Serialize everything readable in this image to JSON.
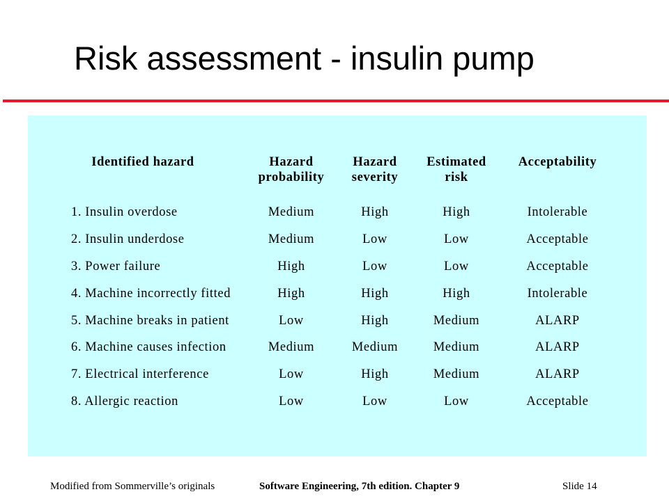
{
  "slide": {
    "title": "Risk assessment - insulin pump",
    "accent_color": "#e8182e",
    "panel_color": "#ccffff"
  },
  "table": {
    "headers": [
      "Identified hazard",
      "Hazard\nprobability",
      "Hazard\nseverity",
      "Estimated\nrisk",
      "Acceptability"
    ],
    "rows": [
      [
        "1. Insulin overdose",
        "Medium",
        "High",
        "High",
        "Intolerable"
      ],
      [
        "2. Insulin underdose",
        "Medium",
        "Low",
        "Low",
        "Acceptable"
      ],
      [
        "3. Power failure",
        "High",
        "Low",
        "Low",
        "Acceptable"
      ],
      [
        "4. Machine incorrectly fitted",
        "High",
        "High",
        "High",
        "Intolerable"
      ],
      [
        "5. Machine breaks in patient",
        "Low",
        "High",
        "Medium",
        "ALARP"
      ],
      [
        "6. Machine causes infection",
        "Medium",
        "Medium",
        "Medium",
        "ALARP"
      ],
      [
        "7. Electrical interference",
        "Low",
        "High",
        "Medium",
        "ALARP"
      ],
      [
        "8. Allergic reaction",
        "Low",
        "Low",
        "Low",
        "Acceptable"
      ]
    ]
  },
  "footer": {
    "left": "Modified from Sommerville’s originals",
    "center": "Software Engineering, 7th edition. Chapter 9",
    "right": "Slide  14"
  }
}
